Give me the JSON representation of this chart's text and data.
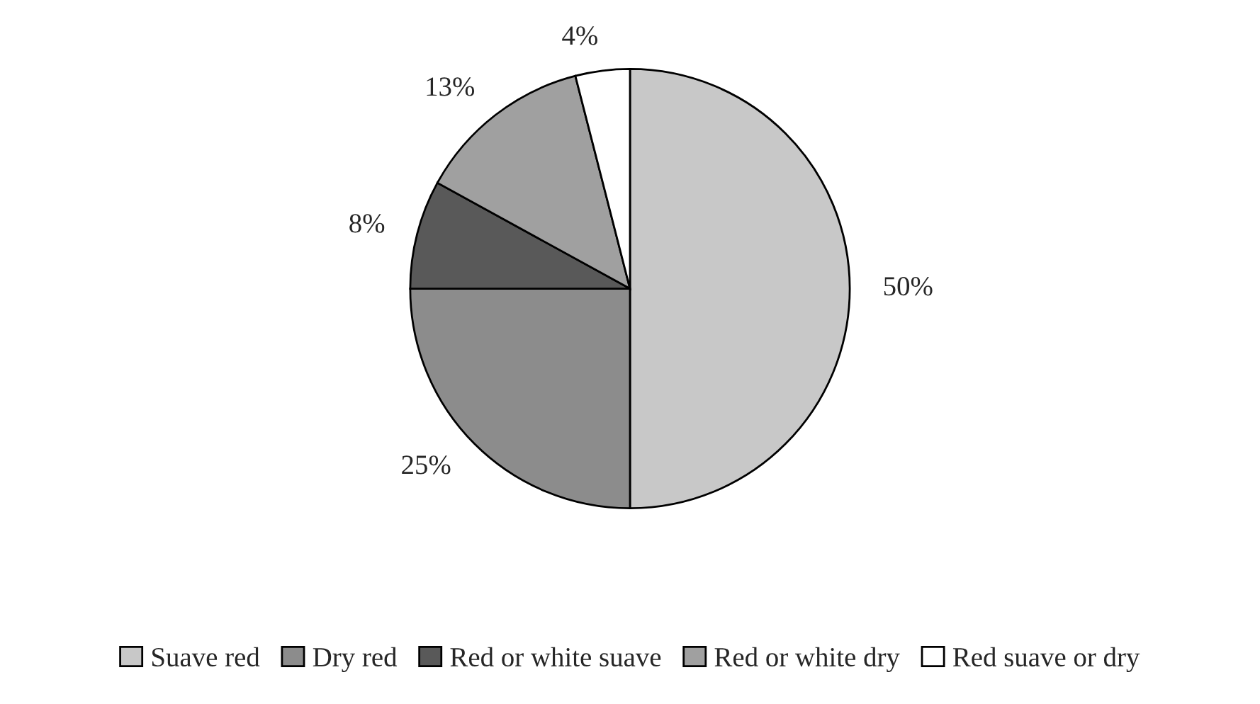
{
  "chart_data": {
    "type": "pie",
    "categories": [
      "Suave red",
      "Dry red",
      "Red or white suave",
      "Red or white dry",
      "Red suave or dry"
    ],
    "values": [
      50,
      25,
      8,
      13,
      4
    ],
    "value_labels": [
      "50%",
      "25%",
      "8%",
      "13%",
      "4%"
    ],
    "colors": [
      "#c8c8c8",
      "#8c8c8c",
      "#595959",
      "#a0a0a0",
      "#ffffff"
    ],
    "legend": "bottom"
  }
}
